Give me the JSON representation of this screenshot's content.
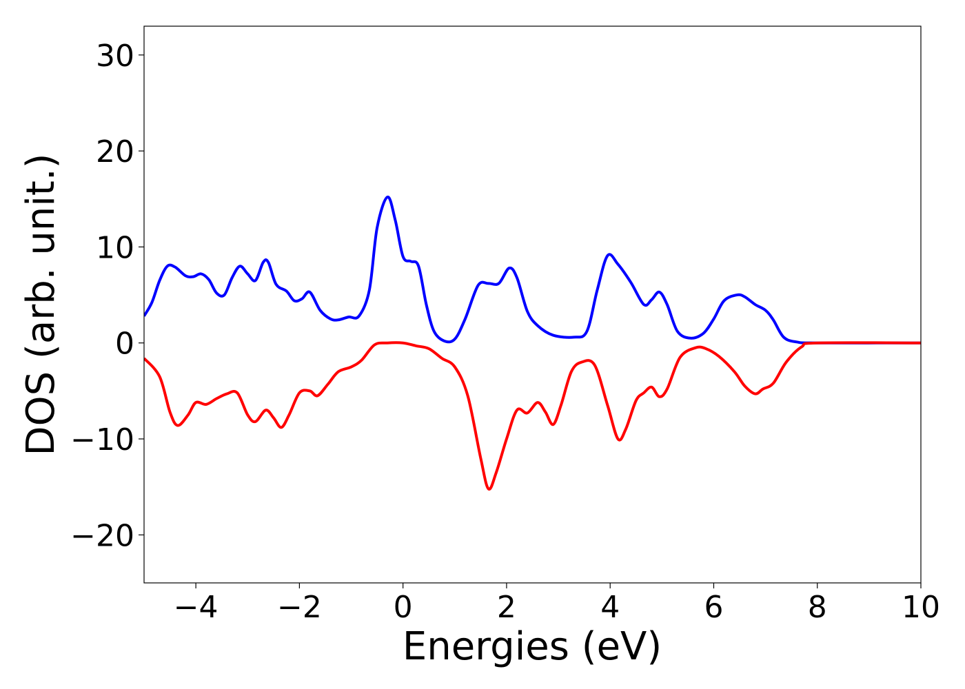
{
  "chart_data": {
    "type": "line",
    "title": "",
    "xlabel": "Energies (eV)",
    "ylabel": "DOS (arb. unit.)",
    "xlim": [
      -5,
      10
    ],
    "ylim": [
      -25,
      33
    ],
    "xticks": [
      -4,
      -2,
      0,
      2,
      4,
      6,
      8,
      10
    ],
    "xtick_labels": [
      "−4",
      "−2",
      "0",
      "2",
      "4",
      "6",
      "8",
      "10"
    ],
    "yticks": [
      -20,
      -10,
      0,
      10,
      20,
      30
    ],
    "ytick_labels": [
      "−20",
      "−10",
      "0",
      "10",
      "20",
      "30"
    ],
    "grid": false,
    "legend": "none",
    "series": [
      {
        "color": "#0000ff",
        "points": [
          [
            -5.0,
            2.8
          ],
          [
            -4.85,
            4.2
          ],
          [
            -4.7,
            6.5
          ],
          [
            -4.55,
            8.0
          ],
          [
            -4.4,
            7.9
          ],
          [
            -4.2,
            7.0
          ],
          [
            -4.05,
            6.9
          ],
          [
            -3.9,
            7.2
          ],
          [
            -3.75,
            6.6
          ],
          [
            -3.6,
            5.2
          ],
          [
            -3.45,
            5.0
          ],
          [
            -3.3,
            6.8
          ],
          [
            -3.15,
            8.0
          ],
          [
            -3.0,
            7.2
          ],
          [
            -2.85,
            6.5
          ],
          [
            -2.7,
            8.4
          ],
          [
            -2.6,
            8.4
          ],
          [
            -2.45,
            6.1
          ],
          [
            -2.25,
            5.4
          ],
          [
            -2.1,
            4.4
          ],
          [
            -1.95,
            4.6
          ],
          [
            -1.8,
            5.3
          ],
          [
            -1.6,
            3.4
          ],
          [
            -1.4,
            2.5
          ],
          [
            -1.25,
            2.4
          ],
          [
            -1.05,
            2.7
          ],
          [
            -0.85,
            2.8
          ],
          [
            -0.65,
            5.5
          ],
          [
            -0.5,
            12.0
          ],
          [
            -0.3,
            15.2
          ],
          [
            -0.15,
            12.8
          ],
          [
            0.0,
            9.0
          ],
          [
            0.15,
            8.5
          ],
          [
            0.3,
            8.0
          ],
          [
            0.45,
            4.0
          ],
          [
            0.6,
            1.2
          ],
          [
            0.8,
            0.2
          ],
          [
            1.0,
            0.4
          ],
          [
            1.2,
            2.5
          ],
          [
            1.45,
            6.0
          ],
          [
            1.65,
            6.2
          ],
          [
            1.85,
            6.2
          ],
          [
            2.05,
            7.8
          ],
          [
            2.2,
            6.8
          ],
          [
            2.4,
            3.3
          ],
          [
            2.6,
            1.8
          ],
          [
            2.9,
            0.8
          ],
          [
            3.3,
            0.6
          ],
          [
            3.55,
            1.2
          ],
          [
            3.75,
            5.5
          ],
          [
            3.95,
            9.1
          ],
          [
            4.15,
            8.2
          ],
          [
            4.4,
            6.3
          ],
          [
            4.65,
            4.0
          ],
          [
            4.8,
            4.5
          ],
          [
            4.95,
            5.3
          ],
          [
            5.1,
            4.0
          ],
          [
            5.3,
            1.2
          ],
          [
            5.55,
            0.5
          ],
          [
            5.8,
            1.0
          ],
          [
            6.0,
            2.5
          ],
          [
            6.2,
            4.4
          ],
          [
            6.45,
            5.0
          ],
          [
            6.6,
            4.8
          ],
          [
            6.8,
            4.0
          ],
          [
            7.0,
            3.4
          ],
          [
            7.15,
            2.4
          ],
          [
            7.35,
            0.6
          ],
          [
            7.6,
            0.1
          ],
          [
            8.0,
            0.0
          ],
          [
            10.0,
            0.0
          ]
        ]
      },
      {
        "color": "#ff0000",
        "points": [
          [
            -5.0,
            -1.6
          ],
          [
            -4.7,
            -3.5
          ],
          [
            -4.5,
            -7.2
          ],
          [
            -4.35,
            -8.6
          ],
          [
            -4.15,
            -7.5
          ],
          [
            -4.0,
            -6.2
          ],
          [
            -3.8,
            -6.4
          ],
          [
            -3.6,
            -5.8
          ],
          [
            -3.4,
            -5.3
          ],
          [
            -3.2,
            -5.2
          ],
          [
            -3.0,
            -7.5
          ],
          [
            -2.85,
            -8.2
          ],
          [
            -2.65,
            -7.0
          ],
          [
            -2.5,
            -7.8
          ],
          [
            -2.35,
            -8.8
          ],
          [
            -2.2,
            -7.5
          ],
          [
            -2.0,
            -5.2
          ],
          [
            -1.8,
            -5.0
          ],
          [
            -1.65,
            -5.5
          ],
          [
            -1.45,
            -4.3
          ],
          [
            -1.25,
            -3.0
          ],
          [
            -1.0,
            -2.5
          ],
          [
            -0.8,
            -1.8
          ],
          [
            -0.55,
            -0.2
          ],
          [
            -0.3,
            0.0
          ],
          [
            0.0,
            0.0
          ],
          [
            0.25,
            -0.3
          ],
          [
            0.5,
            -0.6
          ],
          [
            0.75,
            -1.6
          ],
          [
            1.0,
            -2.5
          ],
          [
            1.25,
            -5.5
          ],
          [
            1.5,
            -12.0
          ],
          [
            1.65,
            -15.2
          ],
          [
            1.8,
            -13.5
          ],
          [
            2.0,
            -10.0
          ],
          [
            2.2,
            -7.0
          ],
          [
            2.4,
            -7.3
          ],
          [
            2.6,
            -6.2
          ],
          [
            2.75,
            -7.2
          ],
          [
            2.9,
            -8.5
          ],
          [
            3.05,
            -6.5
          ],
          [
            3.25,
            -3.0
          ],
          [
            3.45,
            -2.0
          ],
          [
            3.7,
            -2.3
          ],
          [
            3.95,
            -6.5
          ],
          [
            4.15,
            -10.0
          ],
          [
            4.3,
            -9.0
          ],
          [
            4.5,
            -6.0
          ],
          [
            4.65,
            -5.2
          ],
          [
            4.8,
            -4.6
          ],
          [
            4.95,
            -5.6
          ],
          [
            5.1,
            -4.8
          ],
          [
            5.35,
            -1.5
          ],
          [
            5.65,
            -0.5
          ],
          [
            5.85,
            -0.6
          ],
          [
            6.1,
            -1.4
          ],
          [
            6.4,
            -3.0
          ],
          [
            6.6,
            -4.5
          ],
          [
            6.8,
            -5.3
          ],
          [
            6.95,
            -4.8
          ],
          [
            7.15,
            -4.2
          ],
          [
            7.4,
            -2.0
          ],
          [
            7.7,
            -0.4
          ],
          [
            8.0,
            0.0
          ],
          [
            10.0,
            0.0
          ]
        ]
      }
    ]
  }
}
